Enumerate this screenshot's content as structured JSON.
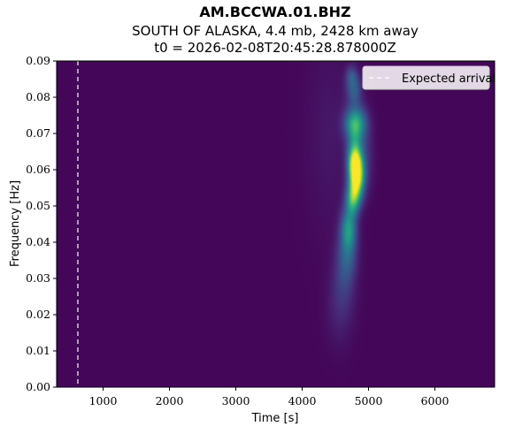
{
  "chart_data": {
    "type": "heatmap",
    "title": "AM.BCCWA.01.BHZ",
    "subtitle_line1": "SOUTH OF ALASKA, 4.4 mb, 2428 km away",
    "subtitle_line2": "t0 = 2026-02-08T20:45:28.878000Z",
    "xlabel": "Time [s]",
    "ylabel": "Frequency [Hz]",
    "xlim": [
      300,
      6900
    ],
    "ylim": [
      0.0,
      0.09
    ],
    "xticks": [
      1000,
      2000,
      3000,
      4000,
      5000,
      6000
    ],
    "xtick_labels": [
      "1000",
      "2000",
      "3000",
      "4000",
      "5000",
      "6000"
    ],
    "yticks": [
      0.0,
      0.01,
      0.02,
      0.03,
      0.04,
      0.05,
      0.06,
      0.07,
      0.08,
      0.09
    ],
    "ytick_labels": [
      "0.00",
      "0.01",
      "0.02",
      "0.03",
      "0.04",
      "0.05",
      "0.06",
      "0.07",
      "0.08",
      "0.09"
    ],
    "colormap": "viridis",
    "background_color": "#440154",
    "expected_arrival": {
      "x": 620,
      "label": "Expected arrival",
      "color": "#ffffff",
      "style": "dashed"
    },
    "legend_position": "upper right",
    "energy_blobs": [
      {
        "t": 4820,
        "f": 0.058,
        "st": 75,
        "sf": 0.004,
        "amp": 1.0
      },
      {
        "t": 4790,
        "f": 0.062,
        "st": 70,
        "sf": 0.003,
        "amp": 0.55
      },
      {
        "t": 4760,
        "f": 0.052,
        "st": 70,
        "sf": 0.003,
        "amp": 0.55
      },
      {
        "t": 4800,
        "f": 0.073,
        "st": 110,
        "sf": 0.003,
        "amp": 0.55
      },
      {
        "t": 4700,
        "f": 0.044,
        "st": 80,
        "sf": 0.004,
        "amp": 0.45
      },
      {
        "t": 4790,
        "f": 0.067,
        "st": 80,
        "sf": 0.004,
        "amp": 0.35
      },
      {
        "t": 4780,
        "f": 0.082,
        "st": 80,
        "sf": 0.003,
        "amp": 0.28
      },
      {
        "t": 4740,
        "f": 0.086,
        "st": 60,
        "sf": 0.002,
        "amp": 0.18
      },
      {
        "t": 4680,
        "f": 0.037,
        "st": 100,
        "sf": 0.005,
        "amp": 0.25
      },
      {
        "t": 4620,
        "f": 0.029,
        "st": 120,
        "sf": 0.006,
        "amp": 0.13
      },
      {
        "t": 4560,
        "f": 0.02,
        "st": 150,
        "sf": 0.007,
        "amp": 0.07
      },
      {
        "t": 4950,
        "f": 0.064,
        "st": 90,
        "sf": 0.007,
        "amp": 0.12
      },
      {
        "t": 4400,
        "f": 0.07,
        "st": 250,
        "sf": 0.02,
        "amp": 0.05
      }
    ]
  }
}
